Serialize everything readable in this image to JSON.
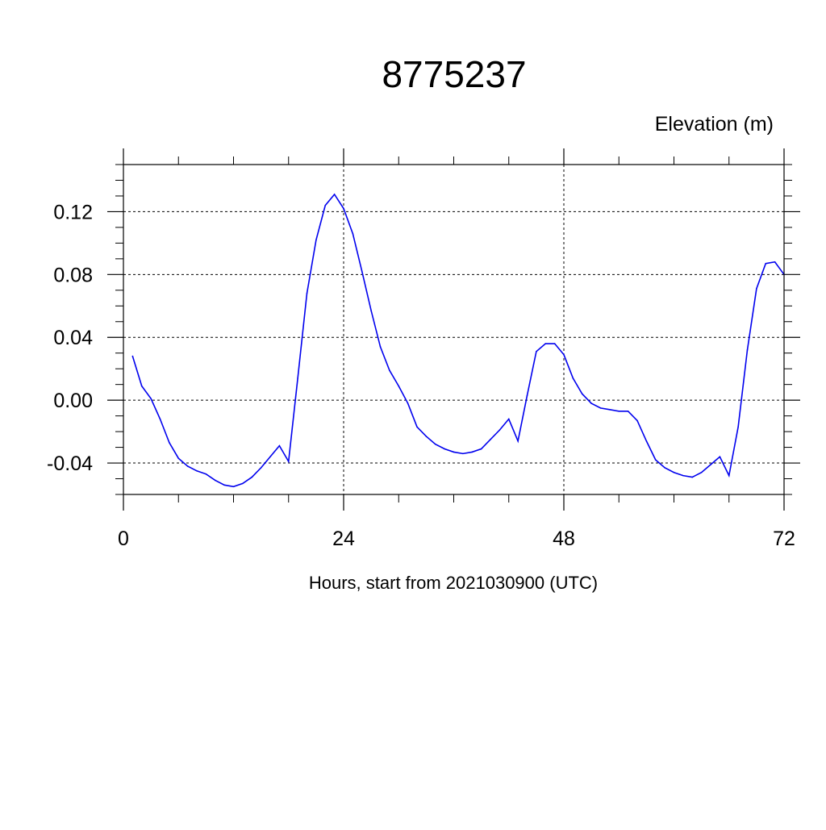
{
  "chart_data": {
    "type": "line",
    "title": "8775237",
    "ylabel": "Elevation (m)",
    "xlabel": "Hours, start from 2021030900 (UTC)",
    "xlim": [
      0,
      72
    ],
    "ylim": [
      -0.06,
      0.15
    ],
    "grid": true,
    "x_ticks": [
      0,
      24,
      48,
      72
    ],
    "x_tick_labels": [
      "0",
      "24",
      "48",
      "72"
    ],
    "y_ticks": [
      0.12,
      0.08,
      0.04,
      0.0,
      -0.04
    ],
    "y_tick_labels": [
      "0.12",
      "0.08",
      "0.04",
      "0.00",
      "-0.04"
    ],
    "line_color": "#0000ee",
    "series": [
      {
        "x": [
          1,
          2,
          3,
          4,
          5,
          6,
          7,
          8,
          9,
          10,
          11,
          12,
          13,
          14,
          15,
          16,
          17,
          18,
          19,
          20,
          21,
          22,
          23,
          24,
          25,
          26,
          27,
          28,
          29,
          30,
          31,
          32,
          33,
          34,
          35,
          36,
          37,
          38,
          39,
          40,
          41,
          42,
          43,
          44,
          45,
          46,
          47,
          48,
          49,
          50,
          51,
          52,
          53,
          54,
          55,
          56,
          57,
          58,
          59,
          60,
          61,
          62,
          63,
          64,
          65,
          66,
          67,
          68,
          69,
          70,
          71,
          72
        ],
        "values": [
          0.028,
          0.009,
          0.001,
          -0.012,
          -0.027,
          -0.037,
          -0.042,
          -0.045,
          -0.047,
          -0.051,
          -0.054,
          -0.055,
          -0.053,
          -0.049,
          -0.043,
          -0.036,
          -0.029,
          -0.039,
          0.014,
          0.068,
          0.102,
          0.124,
          0.131,
          0.122,
          0.106,
          0.082,
          0.057,
          0.034,
          0.019,
          0.009,
          -0.002,
          -0.017,
          -0.023,
          -0.028,
          -0.031,
          -0.033,
          -0.034,
          -0.033,
          -0.031,
          -0.025,
          -0.019,
          -0.012,
          -0.026,
          0.003,
          0.031,
          0.036,
          0.036,
          0.029,
          0.014,
          0.004,
          -0.002,
          -0.005,
          -0.006,
          -0.007,
          -0.007,
          -0.013,
          -0.026,
          -0.038,
          -0.043,
          -0.046,
          -0.048,
          -0.049,
          -0.046,
          -0.041,
          -0.036,
          -0.048,
          -0.017,
          0.032,
          0.071,
          0.087,
          0.088,
          0.08
        ]
      }
    ]
  }
}
